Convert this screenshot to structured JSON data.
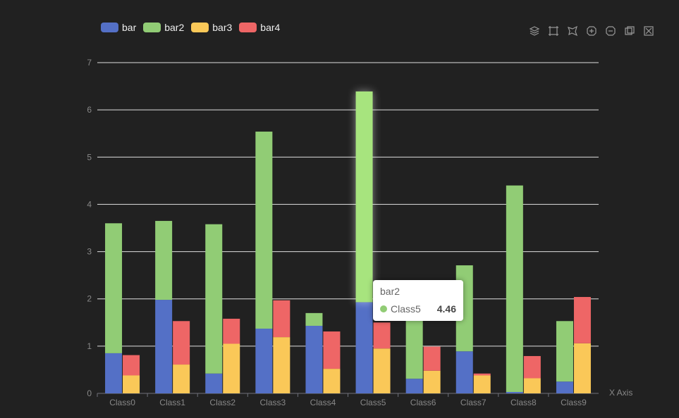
{
  "legend": {
    "items": [
      {
        "label": "bar",
        "color": "#5470c6"
      },
      {
        "label": "bar2",
        "color": "#91cc75"
      },
      {
        "label": "bar3",
        "color": "#fac858"
      },
      {
        "label": "bar4",
        "color": "#ee6666"
      }
    ]
  },
  "toolbox": {
    "icons": [
      "stack-icon",
      "rect-select-icon",
      "lasso-select-icon",
      "keep-select-icon",
      "clear-select-icon",
      "restore-icon",
      "clear-icon"
    ]
  },
  "tooltip": {
    "series": "bar2",
    "category": "Class5",
    "value": "4.46",
    "color": "#91cc75"
  },
  "chart_data": {
    "type": "bar",
    "title": "",
    "xlabel": "X Axis",
    "ylabel": "",
    "ylim": [
      0,
      7
    ],
    "yticks": [
      0,
      1,
      2,
      3,
      4,
      5,
      6,
      7
    ],
    "grid": true,
    "legend_position": "top-left",
    "categories": [
      "Class0",
      "Class1",
      "Class2",
      "Class3",
      "Class4",
      "Class5",
      "Class6",
      "Class7",
      "Class8",
      "Class9"
    ],
    "series": [
      {
        "name": "bar",
        "stack": "one",
        "color": "#5470c6",
        "values": [
          0.85,
          1.98,
          0.42,
          1.37,
          1.43,
          1.93,
          0.31,
          0.89,
          0.03,
          0.25
        ]
      },
      {
        "name": "bar2",
        "stack": "one",
        "color": "#91cc75",
        "values": [
          2.75,
          1.67,
          3.16,
          4.17,
          0.27,
          4.46,
          1.29,
          1.82,
          4.37,
          1.28
        ]
      },
      {
        "name": "bar3",
        "stack": "two",
        "color": "#fac858",
        "values": [
          0.38,
          0.61,
          1.05,
          1.19,
          0.52,
          0.95,
          0.48,
          0.38,
          0.32,
          1.06
        ]
      },
      {
        "name": "bar4",
        "stack": "two",
        "color": "#ee6666",
        "values": [
          0.43,
          0.92,
          0.53,
          0.78,
          0.79,
          0.55,
          0.51,
          0.04,
          0.47,
          0.98
        ]
      }
    ]
  }
}
